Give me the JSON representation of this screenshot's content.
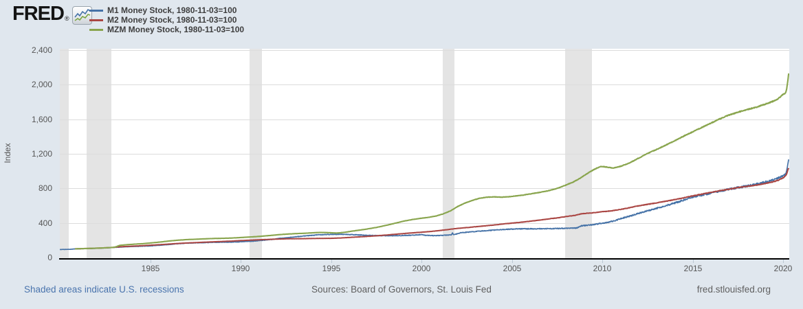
{
  "header": {
    "logo_text": "FRED",
    "logo_reg": "®"
  },
  "footer": {
    "recession_note": "Shaded areas indicate U.S. recessions",
    "sources": "Sources: Board of Governors, St. Louis Fed",
    "site": "fred.stlouisfed.org"
  },
  "colors": {
    "background": "#e0e7ee",
    "plot_background": "#ffffff",
    "recession_band": "#e4e4e4",
    "gridline": "#dcdcdc",
    "axis_line": "#000000",
    "tick_label": "#555555",
    "link_blue": "#4a74ad",
    "footer_gray": "#5f5f5f"
  },
  "chart_data": {
    "type": "line",
    "ylabel": "Index",
    "xlabel": "",
    "x_range": [
      1980.0,
      2020.33
    ],
    "y_range": [
      0,
      2400
    ],
    "y_ticks": [
      0,
      400,
      800,
      1200,
      1600,
      2000,
      2400
    ],
    "x_ticks": [
      1985,
      1990,
      1995,
      2000,
      2005,
      2010,
      2015,
      2020
    ],
    "grid": true,
    "legend_position": "top-left",
    "recession_bands": [
      [
        1980.0,
        1980.5
      ],
      [
        1981.5,
        1982.87
      ],
      [
        1990.5,
        1991.17
      ],
      [
        2001.17,
        2001.83
      ],
      [
        2007.92,
        2009.42
      ]
    ],
    "series": [
      {
        "name": "M1 Money Stock, 1980-11-03=100",
        "color": "#4572a7",
        "width": 1.7,
        "jitter": 0.014,
        "points": [
          [
            1980.0,
            93
          ],
          [
            1980.4,
            94
          ],
          [
            1980.65,
            96
          ],
          [
            1980.84,
            100
          ],
          [
            1981.2,
            101
          ],
          [
            1981.6,
            103
          ],
          [
            1982.0,
            106
          ],
          [
            1982.5,
            110
          ],
          [
            1982.92,
            115
          ],
          [
            1983.4,
            121
          ],
          [
            1984.0,
            127
          ],
          [
            1984.5,
            130
          ],
          [
            1985.0,
            134
          ],
          [
            1985.5,
            141
          ],
          [
            1986.0,
            150
          ],
          [
            1986.6,
            160
          ],
          [
            1987.0,
            166
          ],
          [
            1987.5,
            169
          ],
          [
            1988.0,
            172
          ],
          [
            1988.6,
            176
          ],
          [
            1989.2,
            177
          ],
          [
            1989.7,
            179
          ],
          [
            1990.2,
            184
          ],
          [
            1990.7,
            189
          ],
          [
            1991.2,
            199
          ],
          [
            1991.7,
            209
          ],
          [
            1992.2,
            222
          ],
          [
            1992.7,
            231
          ],
          [
            1993.2,
            243
          ],
          [
            1993.7,
            252
          ],
          [
            1994.2,
            261
          ],
          [
            1994.7,
            266
          ],
          [
            1995.1,
            268
          ],
          [
            1995.5,
            269
          ],
          [
            1996.0,
            266
          ],
          [
            1996.5,
            262
          ],
          [
            1997.0,
            257
          ],
          [
            1997.5,
            253
          ],
          [
            1998.0,
            252
          ],
          [
            1998.6,
            253
          ],
          [
            1999.2,
            256
          ],
          [
            1999.7,
            260
          ],
          [
            1999.97,
            266
          ],
          [
            2000.25,
            257
          ],
          [
            2000.6,
            253
          ],
          [
            2001.0,
            255
          ],
          [
            2001.4,
            259
          ],
          [
            2001.65,
            261
          ],
          [
            2001.71,
            283
          ],
          [
            2001.78,
            264
          ],
          [
            2002.2,
            288
          ],
          [
            2002.7,
            296
          ],
          [
            2003.2,
            305
          ],
          [
            2003.7,
            313
          ],
          [
            2004.2,
            320
          ],
          [
            2004.7,
            326
          ],
          [
            2005.2,
            330
          ],
          [
            2005.7,
            332
          ],
          [
            2006.2,
            333
          ],
          [
            2006.7,
            334
          ],
          [
            2007.2,
            335
          ],
          [
            2007.7,
            336
          ],
          [
            2008.2,
            339
          ],
          [
            2008.6,
            342
          ],
          [
            2008.72,
            356
          ],
          [
            2008.85,
            367
          ],
          [
            2009.1,
            372
          ],
          [
            2009.5,
            380
          ],
          [
            2009.9,
            395
          ],
          [
            2010.3,
            405
          ],
          [
            2010.7,
            428
          ],
          [
            2011.1,
            455
          ],
          [
            2011.5,
            478
          ],
          [
            2012.0,
            510
          ],
          [
            2012.5,
            540
          ],
          [
            2013.0,
            570
          ],
          [
            2013.5,
            600
          ],
          [
            2014.0,
            630
          ],
          [
            2014.5,
            665
          ],
          [
            2015.0,
            700
          ],
          [
            2015.5,
            722
          ],
          [
            2016.0,
            745
          ],
          [
            2016.5,
            768
          ],
          [
            2017.0,
            790
          ],
          [
            2017.4,
            806
          ],
          [
            2018.0,
            828
          ],
          [
            2018.5,
            848
          ],
          [
            2019.0,
            872
          ],
          [
            2019.4,
            893
          ],
          [
            2019.7,
            918
          ],
          [
            2019.95,
            945
          ],
          [
            2020.08,
            955
          ],
          [
            2020.16,
            975
          ],
          [
            2020.21,
            1020
          ],
          [
            2020.26,
            1100
          ],
          [
            2020.31,
            1160
          ]
        ]
      },
      {
        "name": "M2 Money Stock, 1980-11-03=100",
        "color": "#aa4643",
        "width": 2,
        "jitter": 0.0045,
        "points": [
          [
            1980.84,
            100
          ],
          [
            1981.3,
            103
          ],
          [
            1981.8,
            106
          ],
          [
            1982.3,
            110
          ],
          [
            1982.9,
            116
          ],
          [
            1983.3,
            124
          ],
          [
            1983.9,
            130
          ],
          [
            1984.4,
            135
          ],
          [
            1985.0,
            142
          ],
          [
            1985.5,
            148
          ],
          [
            1986.0,
            155
          ],
          [
            1986.5,
            162
          ],
          [
            1987.0,
            168
          ],
          [
            1987.5,
            172
          ],
          [
            1988.0,
            177
          ],
          [
            1988.5,
            182
          ],
          [
            1989.0,
            186
          ],
          [
            1989.5,
            190
          ],
          [
            1990.0,
            196
          ],
          [
            1990.5,
            200
          ],
          [
            1991.0,
            205
          ],
          [
            1991.5,
            209
          ],
          [
            1992.0,
            213
          ],
          [
            1992.5,
            216
          ],
          [
            1993.0,
            217
          ],
          [
            1993.5,
            218
          ],
          [
            1994.0,
            220
          ],
          [
            1994.5,
            221
          ],
          [
            1995.0,
            222
          ],
          [
            1995.5,
            226
          ],
          [
            1996.0,
            232
          ],
          [
            1996.5,
            238
          ],
          [
            1997.0,
            244
          ],
          [
            1997.5,
            251
          ],
          [
            1998.0,
            259
          ],
          [
            1998.5,
            268
          ],
          [
            1999.0,
            277
          ],
          [
            1999.5,
            285
          ],
          [
            2000.0,
            293
          ],
          [
            2000.5,
            301
          ],
          [
            2001.0,
            312
          ],
          [
            2001.4,
            322
          ],
          [
            2001.72,
            330
          ],
          [
            2002.0,
            337
          ],
          [
            2002.5,
            346
          ],
          [
            2003.0,
            356
          ],
          [
            2003.5,
            366
          ],
          [
            2004.0,
            376
          ],
          [
            2004.5,
            388
          ],
          [
            2005.0,
            398
          ],
          [
            2005.5,
            408
          ],
          [
            2006.0,
            420
          ],
          [
            2006.5,
            432
          ],
          [
            2007.0,
            446
          ],
          [
            2007.5,
            458
          ],
          [
            2008.0,
            474
          ],
          [
            2008.5,
            488
          ],
          [
            2008.72,
            500
          ],
          [
            2008.85,
            506
          ],
          [
            2009.2,
            513
          ],
          [
            2009.6,
            520
          ],
          [
            2010.0,
            530
          ],
          [
            2010.5,
            540
          ],
          [
            2011.0,
            556
          ],
          [
            2011.4,
            572
          ],
          [
            2011.8,
            590
          ],
          [
            2012.2,
            605
          ],
          [
            2012.7,
            622
          ],
          [
            2013.2,
            640
          ],
          [
            2013.7,
            658
          ],
          [
            2014.2,
            678
          ],
          [
            2014.7,
            700
          ],
          [
            2015.2,
            722
          ],
          [
            2015.7,
            742
          ],
          [
            2016.2,
            762
          ],
          [
            2016.7,
            780
          ],
          [
            2017.2,
            798
          ],
          [
            2017.6,
            812
          ],
          [
            2018.0,
            824
          ],
          [
            2018.5,
            838
          ],
          [
            2019.0,
            856
          ],
          [
            2019.4,
            874
          ],
          [
            2019.7,
            893
          ],
          [
            2019.95,
            918
          ],
          [
            2020.08,
            935
          ],
          [
            2020.16,
            958
          ],
          [
            2020.21,
            985
          ],
          [
            2020.26,
            1018
          ],
          [
            2020.31,
            1040
          ]
        ]
      },
      {
        "name": "MZM Money Stock, 1980-11-03=100",
        "color": "#89a54e",
        "width": 2.1,
        "jitter": 0.003,
        "points": [
          [
            1980.84,
            100
          ],
          [
            1981.3,
            103
          ],
          [
            1981.8,
            106
          ],
          [
            1982.3,
            110
          ],
          [
            1982.9,
            116
          ],
          [
            1983.08,
            122
          ],
          [
            1983.3,
            140
          ],
          [
            1983.7,
            148
          ],
          [
            1984.1,
            154
          ],
          [
            1984.6,
            160
          ],
          [
            1985.0,
            168
          ],
          [
            1985.5,
            178
          ],
          [
            1986.0,
            190
          ],
          [
            1986.5,
            200
          ],
          [
            1987.0,
            207
          ],
          [
            1987.5,
            211
          ],
          [
            1988.0,
            216
          ],
          [
            1988.5,
            220
          ],
          [
            1989.0,
            222
          ],
          [
            1989.5,
            225
          ],
          [
            1990.0,
            231
          ],
          [
            1990.5,
            237
          ],
          [
            1991.0,
            244
          ],
          [
            1991.5,
            252
          ],
          [
            1992.0,
            262
          ],
          [
            1992.5,
            270
          ],
          [
            1993.0,
            276
          ],
          [
            1993.5,
            280
          ],
          [
            1994.0,
            286
          ],
          [
            1994.4,
            290
          ],
          [
            1994.9,
            287
          ],
          [
            1995.3,
            283
          ],
          [
            1995.7,
            290
          ],
          [
            1996.0,
            300
          ],
          [
            1996.5,
            315
          ],
          [
            1997.0,
            330
          ],
          [
            1997.5,
            348
          ],
          [
            1998.0,
            370
          ],
          [
            1998.5,
            395
          ],
          [
            1999.0,
            420
          ],
          [
            1999.5,
            440
          ],
          [
            2000.0,
            455
          ],
          [
            2000.4,
            465
          ],
          [
            2000.8,
            480
          ],
          [
            2001.2,
            505
          ],
          [
            2001.6,
            540
          ],
          [
            2002.0,
            590
          ],
          [
            2002.4,
            630
          ],
          [
            2002.8,
            660
          ],
          [
            2003.2,
            685
          ],
          [
            2003.6,
            698
          ],
          [
            2004.0,
            702
          ],
          [
            2004.4,
            698
          ],
          [
            2004.8,
            703
          ],
          [
            2005.2,
            712
          ],
          [
            2005.6,
            722
          ],
          [
            2006.0,
            735
          ],
          [
            2006.5,
            752
          ],
          [
            2007.0,
            772
          ],
          [
            2007.5,
            800
          ],
          [
            2008.0,
            840
          ],
          [
            2008.4,
            875
          ],
          [
            2008.75,
            915
          ],
          [
            2009.0,
            950
          ],
          [
            2009.3,
            990
          ],
          [
            2009.6,
            1025
          ],
          [
            2009.9,
            1055
          ],
          [
            2010.2,
            1048
          ],
          [
            2010.6,
            1035
          ],
          [
            2011.0,
            1055
          ],
          [
            2011.5,
            1095
          ],
          [
            2012.0,
            1150
          ],
          [
            2012.5,
            1205
          ],
          [
            2013.0,
            1250
          ],
          [
            2013.5,
            1300
          ],
          [
            2014.0,
            1350
          ],
          [
            2014.5,
            1405
          ],
          [
            2015.0,
            1455
          ],
          [
            2015.5,
            1505
          ],
          [
            2016.0,
            1555
          ],
          [
            2016.5,
            1605
          ],
          [
            2017.0,
            1648
          ],
          [
            2017.5,
            1682
          ],
          [
            2018.0,
            1712
          ],
          [
            2018.5,
            1738
          ],
          [
            2019.0,
            1775
          ],
          [
            2019.4,
            1805
          ],
          [
            2019.7,
            1835
          ],
          [
            2019.95,
            1880
          ],
          [
            2020.06,
            1895
          ],
          [
            2020.13,
            1910
          ],
          [
            2020.18,
            1945
          ],
          [
            2020.23,
            2010
          ],
          [
            2020.27,
            2080
          ],
          [
            2020.31,
            2140
          ]
        ]
      }
    ]
  }
}
